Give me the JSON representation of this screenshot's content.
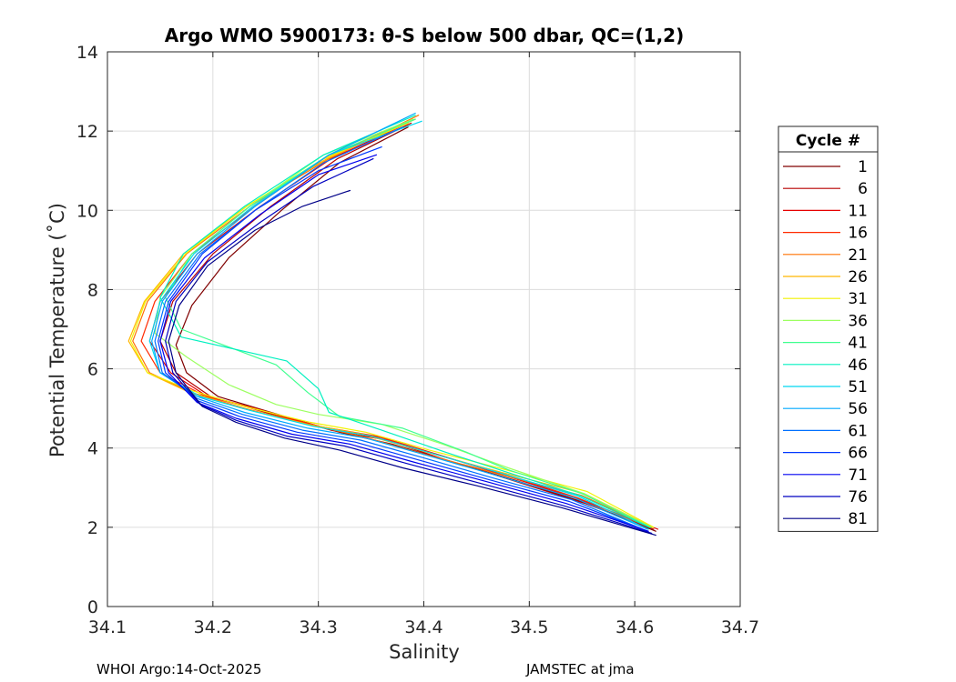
{
  "chart_data": {
    "type": "line",
    "title": "Argo WMO 5900173: θ-S below 500 dbar,  QC=(1,2)",
    "xlabel": "Salinity",
    "ylabel": "Potential Temperature (˚C)",
    "xlim": [
      34.1,
      34.7
    ],
    "ylim": [
      0,
      14
    ],
    "xticks": [
      "34.1",
      "34.2",
      "34.3",
      "34.4",
      "34.5",
      "34.6",
      "34.7"
    ],
    "yticks": [
      "0",
      "2",
      "4",
      "6",
      "8",
      "10",
      "12",
      "14"
    ],
    "grid": true,
    "legend": {
      "title": "Cycle #",
      "placement": "right",
      "entries": [
        {
          "label": "1",
          "color": "#800000"
        },
        {
          "label": "6",
          "color": "#b80000"
        },
        {
          "label": "11",
          "color": "#e60000"
        },
        {
          "label": "16",
          "color": "#ff2a00"
        },
        {
          "label": "21",
          "color": "#ff7000"
        },
        {
          "label": "26",
          "color": "#ffb800"
        },
        {
          "label": "31",
          "color": "#f2f200"
        },
        {
          "label": "36",
          "color": "#9cff60"
        },
        {
          "label": "41",
          "color": "#40ff90"
        },
        {
          "label": "46",
          "color": "#00f0c0"
        },
        {
          "label": "51",
          "color": "#00d8f0"
        },
        {
          "label": "56",
          "color": "#00a8ff"
        },
        {
          "label": "61",
          "color": "#0070ff"
        },
        {
          "label": "66",
          "color": "#0038ff"
        },
        {
          "label": "71",
          "color": "#0000f0"
        },
        {
          "label": "76",
          "color": "#0000c0"
        },
        {
          "label": "81",
          "color": "#000088"
        }
      ]
    },
    "series": [
      {
        "name": "1",
        "color": "#800000",
        "x": [
          34.62,
          34.555,
          34.485,
          34.42,
          34.37,
          34.32,
          34.255,
          34.205,
          34.175,
          34.165,
          34.18,
          34.215,
          34.265,
          34.32,
          34.385
        ],
        "y": [
          1.9,
          2.6,
          3.2,
          3.7,
          4.1,
          4.4,
          4.9,
          5.3,
          5.9,
          6.6,
          7.6,
          8.8,
          10.0,
          11.2,
          12.1
        ]
      },
      {
        "name": "6",
        "color": "#b80000",
        "x": [
          34.618,
          34.553,
          34.482,
          34.415,
          34.365,
          34.312,
          34.25,
          34.198,
          34.165,
          34.15,
          34.162,
          34.2,
          34.255,
          34.318,
          34.388
        ],
        "y": [
          1.95,
          2.6,
          3.2,
          3.75,
          4.2,
          4.45,
          4.9,
          5.3,
          5.9,
          6.7,
          7.7,
          8.9,
          10.1,
          11.3,
          12.2
        ]
      },
      {
        "name": "11",
        "color": "#e60000",
        "x": [
          34.622,
          34.548,
          34.478,
          34.418,
          34.362,
          34.308,
          34.245,
          34.195,
          34.16,
          34.14,
          34.15,
          34.185,
          34.245,
          34.312,
          34.385
        ],
        "y": [
          1.95,
          2.7,
          3.3,
          3.8,
          4.25,
          4.5,
          4.95,
          5.3,
          5.9,
          6.7,
          7.7,
          8.9,
          10.1,
          11.3,
          12.2
        ]
      },
      {
        "name": "16",
        "color": "#ff2a00",
        "x": [
          34.615,
          34.545,
          34.475,
          34.41,
          34.355,
          34.3,
          34.24,
          34.19,
          34.15,
          34.132,
          34.145,
          34.18,
          34.24,
          34.305,
          34.38
        ],
        "y": [
          2.0,
          2.75,
          3.35,
          3.85,
          4.3,
          4.55,
          5.0,
          5.35,
          5.9,
          6.7,
          7.7,
          8.9,
          10.1,
          11.3,
          12.2
        ]
      },
      {
        "name": "21",
        "color": "#ff7000",
        "x": [
          34.616,
          34.55,
          34.47,
          34.4,
          34.34,
          34.29,
          34.23,
          34.18,
          34.14,
          34.124,
          34.138,
          34.175,
          34.235,
          34.31,
          34.395
        ],
        "y": [
          2.0,
          2.8,
          3.35,
          3.85,
          4.3,
          4.6,
          5.0,
          5.4,
          5.9,
          6.7,
          7.7,
          8.9,
          10.1,
          11.3,
          12.4
        ]
      },
      {
        "name": "26",
        "color": "#ffb800",
        "x": [
          34.617,
          34.552,
          34.472,
          34.402,
          34.342,
          34.29,
          34.228,
          34.178,
          34.138,
          34.12,
          34.135,
          34.172,
          34.232,
          34.308,
          34.392
        ],
        "y": [
          2.0,
          2.85,
          3.4,
          3.9,
          4.35,
          4.6,
          5.0,
          5.4,
          5.9,
          6.7,
          7.7,
          8.9,
          10.1,
          11.3,
          12.3
        ]
      },
      {
        "name": "31",
        "color": "#f2f200",
        "x": [
          34.618,
          34.555,
          34.478,
          34.405,
          34.345,
          34.292,
          34.23,
          34.18,
          34.138,
          34.122,
          34.136,
          34.174,
          34.232,
          34.305,
          34.385
        ],
        "y": [
          2.0,
          2.9,
          3.45,
          3.95,
          4.4,
          4.65,
          5.05,
          5.45,
          5.9,
          6.7,
          7.7,
          8.9,
          10.1,
          11.3,
          12.2
        ]
      },
      {
        "name": "36",
        "color": "#9cff60",
        "x": [
          34.616,
          34.552,
          34.48,
          34.418,
          34.36,
          34.3,
          34.26,
          34.215,
          34.175,
          34.145,
          34.15,
          34.18,
          34.235,
          34.305,
          34.39
        ],
        "y": [
          2.0,
          2.85,
          3.5,
          4.1,
          4.6,
          4.85,
          5.1,
          5.6,
          6.3,
          6.9,
          7.8,
          8.9,
          10.1,
          11.4,
          12.3
        ]
      },
      {
        "name": "41",
        "color": "#40ff90",
        "x": [
          34.615,
          34.55,
          34.48,
          34.44,
          34.38,
          34.32,
          34.29,
          34.26,
          34.21,
          34.17,
          34.155,
          34.18,
          34.235,
          34.31,
          34.392
        ],
        "y": [
          2.0,
          2.85,
          3.45,
          3.9,
          4.5,
          4.8,
          5.4,
          6.1,
          6.6,
          7.0,
          7.8,
          8.9,
          10.1,
          11.4,
          12.3
        ]
      },
      {
        "name": "46",
        "color": "#00f0c0",
        "x": [
          34.614,
          34.548,
          34.478,
          34.42,
          34.36,
          34.31,
          34.3,
          34.27,
          34.22,
          34.17,
          34.15,
          34.172,
          34.23,
          34.305,
          34.392
        ],
        "y": [
          2.0,
          2.8,
          3.4,
          3.9,
          4.45,
          4.9,
          5.5,
          6.2,
          6.5,
          6.8,
          7.8,
          8.9,
          10.1,
          11.4,
          12.4
        ]
      },
      {
        "name": "51",
        "color": "#00d8f0",
        "x": [
          34.613,
          34.545,
          34.475,
          34.41,
          34.35,
          34.295,
          34.235,
          34.188,
          34.15,
          34.14,
          34.15,
          34.182,
          34.238,
          34.31,
          34.398
        ],
        "y": [
          1.95,
          2.8,
          3.35,
          3.85,
          4.3,
          4.55,
          4.95,
          5.3,
          5.9,
          6.7,
          7.7,
          8.9,
          10.1,
          11.4,
          12.25
        ]
      },
      {
        "name": "56",
        "color": "#00a8ff",
        "x": [
          34.612,
          34.542,
          34.47,
          34.405,
          34.345,
          34.29,
          34.23,
          34.185,
          34.15,
          34.142,
          34.152,
          34.185,
          34.24,
          34.31,
          34.392
        ],
        "y": [
          1.95,
          2.75,
          3.3,
          3.8,
          4.25,
          4.5,
          4.9,
          5.3,
          5.9,
          6.7,
          7.7,
          8.9,
          10.1,
          11.4,
          12.45
        ]
      },
      {
        "name": "61",
        "color": "#0070ff",
        "x": [
          34.612,
          34.54,
          34.465,
          34.4,
          34.34,
          34.285,
          34.228,
          34.185,
          34.152,
          34.145,
          34.155,
          34.188,
          34.24,
          34.305,
          34.38
        ],
        "y": [
          1.9,
          2.7,
          3.25,
          3.75,
          4.2,
          4.45,
          4.85,
          5.25,
          5.9,
          6.7,
          7.7,
          8.9,
          10.0,
          11.2,
          12.1
        ]
      },
      {
        "name": "66",
        "color": "#0038ff",
        "x": [
          34.612,
          34.538,
          34.462,
          34.395,
          34.335,
          34.28,
          34.225,
          34.185,
          34.155,
          34.148,
          34.158,
          34.19,
          34.24,
          34.3,
          34.36
        ],
        "y": [
          1.9,
          2.65,
          3.2,
          3.7,
          4.15,
          4.4,
          4.8,
          5.2,
          5.9,
          6.7,
          7.7,
          8.9,
          10.0,
          11.0,
          11.6
        ]
      },
      {
        "name": "71",
        "color": "#0000f0",
        "x": [
          34.613,
          34.535,
          34.46,
          34.39,
          34.33,
          34.275,
          34.222,
          34.185,
          34.158,
          34.15,
          34.16,
          34.192,
          34.245,
          34.3,
          34.355
        ],
        "y": [
          1.9,
          2.6,
          3.15,
          3.65,
          4.1,
          4.35,
          4.75,
          5.15,
          5.9,
          6.7,
          7.7,
          8.8,
          9.9,
          10.9,
          11.4
        ]
      },
      {
        "name": "76",
        "color": "#0000c0",
        "x": [
          34.616,
          34.532,
          34.455,
          34.385,
          34.325,
          34.27,
          34.222,
          34.188,
          34.162,
          34.155,
          34.165,
          34.195,
          34.245,
          34.295,
          34.352
        ],
        "y": [
          1.85,
          2.55,
          3.1,
          3.6,
          4.05,
          4.3,
          4.7,
          5.1,
          5.9,
          6.7,
          7.7,
          8.7,
          9.7,
          10.6,
          11.3
        ]
      },
      {
        "name": "81",
        "color": "#000088",
        "x": [
          34.62,
          34.53,
          34.45,
          34.38,
          34.32,
          34.268,
          34.222,
          34.19,
          34.165,
          34.158,
          34.168,
          34.195,
          34.24,
          34.285,
          34.33
        ],
        "y": [
          1.8,
          2.5,
          3.05,
          3.5,
          3.95,
          4.25,
          4.65,
          5.05,
          5.9,
          6.7,
          7.6,
          8.6,
          9.5,
          10.1,
          10.5
        ]
      }
    ]
  },
  "footer": {
    "left": "WHOI Argo:14-Oct-2025",
    "right": "JAMSTEC at jma"
  }
}
